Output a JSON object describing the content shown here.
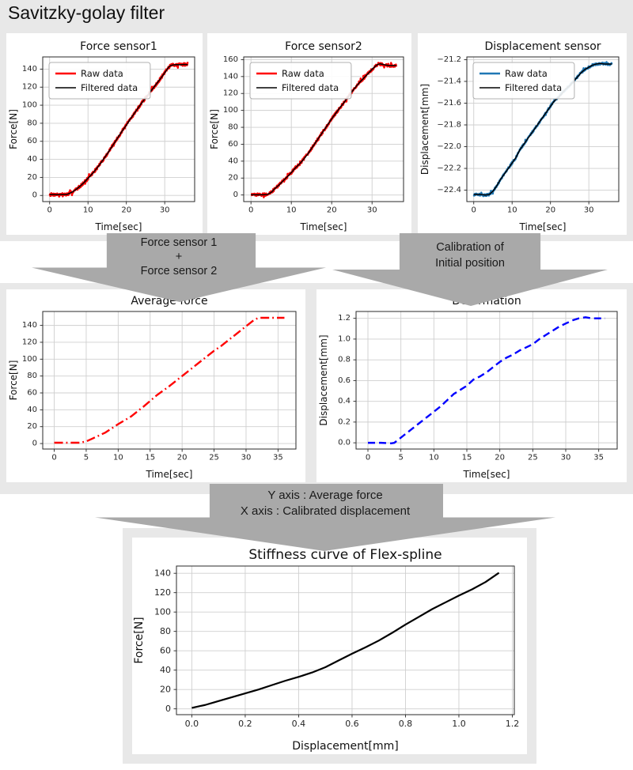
{
  "page": {
    "title": "Savitzky-golay filter",
    "band_color": "#e8e8e8",
    "arrow_color": "#a9a9a9",
    "panel_color": "#ffffff"
  },
  "arrows": [
    {
      "lines": [
        "Force sensor 1",
        "+",
        "Force sensor 2"
      ]
    },
    {
      "lines": [
        "Calibration of",
        "Initial position"
      ]
    },
    {
      "lines": [
        "Y axis : Average force",
        "X axis : Calibrated displacement"
      ]
    }
  ],
  "chart_data": [
    {
      "type": "line",
      "title": "Force sensor1",
      "xlabel": "Time[sec]",
      "ylabel": "Force[N]",
      "xlim": [
        -1.8,
        37.8
      ],
      "ylim": [
        -6.8,
        153.5
      ],
      "xticks": [
        0,
        10,
        20,
        30
      ],
      "yticks": [
        0,
        20,
        40,
        60,
        80,
        100,
        120,
        140
      ],
      "x_decimals": 0,
      "y_decimals": 0,
      "grid": true,
      "legend_position": "upper left",
      "legend": [
        {
          "label": "Raw data",
          "color": "#ff0000"
        },
        {
          "label": "Filtered data",
          "color": "#000000"
        }
      ],
      "points": [
        [
          0,
          1
        ],
        [
          1,
          1
        ],
        [
          2,
          1
        ],
        [
          3,
          1
        ],
        [
          4,
          1
        ],
        [
          4.5,
          1.2
        ],
        [
          5,
          2
        ],
        [
          6,
          4
        ],
        [
          7,
          7
        ],
        [
          8,
          10.5
        ],
        [
          9,
          14.5
        ],
        [
          10,
          19
        ],
        [
          11,
          23.5
        ],
        [
          12,
          28.5
        ],
        [
          13,
          34
        ],
        [
          14,
          40
        ],
        [
          15,
          46
        ],
        [
          16,
          52.5
        ],
        [
          17,
          59
        ],
        [
          18,
          65.5
        ],
        [
          19,
          72
        ],
        [
          20,
          78
        ],
        [
          21,
          84.5
        ],
        [
          22,
          90.5
        ],
        [
          23,
          96.5
        ],
        [
          24,
          102.5
        ],
        [
          25,
          108
        ],
        [
          26,
          113.5
        ],
        [
          27,
          119
        ],
        [
          28,
          124.5
        ],
        [
          29,
          130
        ],
        [
          30,
          136
        ],
        [
          30.5,
          139
        ],
        [
          31,
          142
        ],
        [
          31.5,
          143.8
        ],
        [
          32,
          144.5
        ],
        [
          33,
          145
        ],
        [
          34,
          144.8
        ],
        [
          35,
          145.2
        ],
        [
          36,
          145
        ]
      ],
      "series": [
        {
          "name": "Raw data",
          "color": "#ff0000",
          "width": 2.4,
          "style": "solid",
          "noise": 1.7
        },
        {
          "name": "Filtered data",
          "color": "#000000",
          "width": 1.5,
          "style": "solid"
        }
      ]
    },
    {
      "type": "line",
      "title": "Force sensor2",
      "xlabel": "Time[sec]",
      "ylabel": "Force[N]",
      "xlim": [
        -1.8,
        37.8
      ],
      "ylim": [
        -7.8,
        163.2
      ],
      "xticks": [
        0,
        10,
        20,
        30
      ],
      "yticks": [
        0,
        20,
        40,
        60,
        80,
        100,
        120,
        140,
        160
      ],
      "x_decimals": 0,
      "y_decimals": 0,
      "grid": true,
      "legend_position": "upper left",
      "legend": [
        {
          "label": "Raw data",
          "color": "#ff0000"
        },
        {
          "label": "Filtered data",
          "color": "#000000"
        }
      ],
      "points": [
        [
          0,
          0.3
        ],
        [
          1,
          0.3
        ],
        [
          2,
          0.3
        ],
        [
          3,
          0.3
        ],
        [
          4,
          0.5
        ],
        [
          5,
          3
        ],
        [
          6,
          8
        ],
        [
          7,
          12
        ],
        [
          8,
          17
        ],
        [
          9,
          21.5
        ],
        [
          10,
          26.5
        ],
        [
          11,
          32
        ],
        [
          12,
          36.5
        ],
        [
          13,
          42
        ],
        [
          14,
          48
        ],
        [
          15,
          55
        ],
        [
          16,
          62
        ],
        [
          17,
          69
        ],
        [
          18,
          76
        ],
        [
          19,
          83
        ],
        [
          20,
          90
        ],
        [
          21,
          96.5
        ],
        [
          22,
          103
        ],
        [
          23,
          109
        ],
        [
          24,
          115.5
        ],
        [
          25,
          122
        ],
        [
          26,
          128
        ],
        [
          27,
          133.5
        ],
        [
          28,
          138.5
        ],
        [
          29,
          143.5
        ],
        [
          30,
          148.5
        ],
        [
          31,
          153
        ],
        [
          31.5,
          154.5
        ],
        [
          32,
          155
        ],
        [
          33,
          154
        ],
        [
          34,
          153.2
        ],
        [
          35,
          153
        ],
        [
          36,
          153
        ]
      ],
      "series": [
        {
          "name": "Raw data",
          "color": "#ff0000",
          "width": 2.4,
          "style": "solid",
          "noise": 1.7
        },
        {
          "name": "Filtered data",
          "color": "#000000",
          "width": 1.5,
          "style": "solid"
        }
      ]
    },
    {
      "type": "line",
      "title": "Displacement sensor",
      "xlabel": "Time[sec]",
      "ylabel": "Displacement[mm]",
      "xlim": [
        -1.8,
        37.8
      ],
      "ylim": [
        -22.505,
        -21.175
      ],
      "xticks": [
        0,
        10,
        20,
        30
      ],
      "yticks": [
        -22.4,
        -22.2,
        -22.0,
        -21.8,
        -21.6,
        -21.4,
        -21.2
      ],
      "x_decimals": 0,
      "y_decimals": 1,
      "grid": true,
      "legend_position": "upper left",
      "legend": [
        {
          "label": "Raw data",
          "color": "#1f77b4"
        },
        {
          "label": "Filtered data",
          "color": "#000000"
        }
      ],
      "points": [
        [
          0,
          -22.44
        ],
        [
          1,
          -22.44
        ],
        [
          2,
          -22.44
        ],
        [
          3,
          -22.445
        ],
        [
          4,
          -22.44
        ],
        [
          5,
          -22.41
        ],
        [
          6,
          -22.36
        ],
        [
          7,
          -22.3
        ],
        [
          8,
          -22.25
        ],
        [
          9,
          -22.2
        ],
        [
          10,
          -22.15
        ],
        [
          11,
          -22.1
        ],
        [
          12,
          -22.03
        ],
        [
          13,
          -21.98
        ],
        [
          14,
          -21.93
        ],
        [
          15,
          -21.88
        ],
        [
          16,
          -21.83
        ],
        [
          17,
          -21.78
        ],
        [
          18,
          -21.73
        ],
        [
          19,
          -21.68
        ],
        [
          20,
          -21.63
        ],
        [
          21,
          -21.58
        ],
        [
          22,
          -21.55
        ],
        [
          23,
          -21.51
        ],
        [
          24,
          -21.47
        ],
        [
          25,
          -21.44
        ],
        [
          26,
          -21.4
        ],
        [
          27,
          -21.36
        ],
        [
          28,
          -21.32
        ],
        [
          29,
          -21.29
        ],
        [
          30,
          -21.27
        ],
        [
          31,
          -21.25
        ],
        [
          32,
          -21.24
        ],
        [
          33,
          -21.235
        ],
        [
          34,
          -21.24
        ],
        [
          35,
          -21.24
        ],
        [
          36,
          -21.24
        ]
      ],
      "series": [
        {
          "name": "Raw data",
          "color": "#1f77b4",
          "width": 2.4,
          "style": "solid",
          "noise": 0.011
        },
        {
          "name": "Filtered data",
          "color": "#000000",
          "width": 1.5,
          "style": "solid"
        }
      ]
    },
    {
      "type": "line",
      "title": "Average force",
      "xlabel": "Time[sec]",
      "ylabel": "Force[N]",
      "xlim": [
        -1.8,
        37.8
      ],
      "ylim": [
        -6.5,
        156.5
      ],
      "xticks": [
        0,
        5,
        10,
        15,
        20,
        25,
        30,
        35
      ],
      "yticks": [
        0,
        20,
        40,
        60,
        80,
        100,
        120,
        140
      ],
      "x_decimals": 0,
      "y_decimals": 0,
      "grid": true,
      "legend_position": "none",
      "legend": [],
      "points": [
        [
          0,
          1
        ],
        [
          2,
          1
        ],
        [
          4,
          1
        ],
        [
          5,
          2.5
        ],
        [
          6,
          6
        ],
        [
          8,
          13
        ],
        [
          10,
          23
        ],
        [
          12,
          32
        ],
        [
          14,
          44
        ],
        [
          16,
          57
        ],
        [
          18,
          68
        ],
        [
          20,
          80
        ],
        [
          22,
          92
        ],
        [
          24,
          104
        ],
        [
          25,
          110
        ],
        [
          26,
          115
        ],
        [
          28,
          127
        ],
        [
          30,
          139
        ],
        [
          31,
          145
        ],
        [
          31.5,
          147.5
        ],
        [
          32,
          149
        ],
        [
          33,
          149
        ],
        [
          34,
          149
        ],
        [
          35,
          149
        ],
        [
          36,
          149
        ]
      ],
      "series": [
        {
          "name": "Average force",
          "color": "#ff0000",
          "width": 2.4,
          "style": "dashdot"
        }
      ]
    },
    {
      "type": "line",
      "title": "Deformation",
      "xlabel": "Time[sec]",
      "ylabel": "Displacement[mm]",
      "xlim": [
        -1.8,
        37.8
      ],
      "ylim": [
        -0.06,
        1.266
      ],
      "xticks": [
        0,
        5,
        10,
        15,
        20,
        25,
        30,
        35
      ],
      "yticks": [
        0.0,
        0.2,
        0.4,
        0.6,
        0.8,
        1.0,
        1.2
      ],
      "x_decimals": 0,
      "y_decimals": 1,
      "grid": true,
      "legend_position": "none",
      "legend": [],
      "points": [
        [
          0,
          0
        ],
        [
          2,
          0
        ],
        [
          3.5,
          -0.005
        ],
        [
          4,
          0
        ],
        [
          5,
          0.05
        ],
        [
          6,
          0.1
        ],
        [
          8,
          0.2
        ],
        [
          10,
          0.3
        ],
        [
          11,
          0.35
        ],
        [
          12,
          0.41
        ],
        [
          13,
          0.47
        ],
        [
          14,
          0.51
        ],
        [
          15,
          0.55
        ],
        [
          16,
          0.61
        ],
        [
          17,
          0.64
        ],
        [
          18,
          0.68
        ],
        [
          19,
          0.73
        ],
        [
          20,
          0.78
        ],
        [
          21,
          0.82
        ],
        [
          22,
          0.85
        ],
        [
          23,
          0.89
        ],
        [
          24,
          0.92
        ],
        [
          25,
          0.95
        ],
        [
          26,
          1.0
        ],
        [
          27,
          1.04
        ],
        [
          28,
          1.08
        ],
        [
          29,
          1.12
        ],
        [
          30,
          1.15
        ],
        [
          31,
          1.18
        ],
        [
          32,
          1.2
        ],
        [
          33,
          1.21
        ],
        [
          34,
          1.2
        ],
        [
          35,
          1.2
        ],
        [
          36,
          1.2
        ]
      ],
      "series": [
        {
          "name": "Deformation",
          "color": "#0000ff",
          "width": 2.4,
          "style": "dashed"
        }
      ]
    },
    {
      "type": "line",
      "title": "Stiffness curve of Flex-spline",
      "xlabel": "Displacement[mm]",
      "ylabel": "Force[N]",
      "xlim": [
        -0.0575,
        1.2075
      ],
      "ylim": [
        -6,
        147.5
      ],
      "xticks": [
        0.0,
        0.2,
        0.4,
        0.6,
        0.8,
        1.0,
        1.2
      ],
      "yticks": [
        0,
        20,
        40,
        60,
        80,
        100,
        120,
        140
      ],
      "x_decimals": 1,
      "y_decimals": 0,
      "grid": true,
      "legend_position": "none",
      "legend": [],
      "points": [
        [
          0,
          1
        ],
        [
          0.05,
          4
        ],
        [
          0.1,
          8
        ],
        [
          0.15,
          12
        ],
        [
          0.2,
          16
        ],
        [
          0.25,
          20
        ],
        [
          0.3,
          24.5
        ],
        [
          0.35,
          29
        ],
        [
          0.4,
          33
        ],
        [
          0.45,
          37.5
        ],
        [
          0.5,
          43
        ],
        [
          0.55,
          50
        ],
        [
          0.6,
          57
        ],
        [
          0.65,
          63.5
        ],
        [
          0.7,
          70.5
        ],
        [
          0.75,
          78.5
        ],
        [
          0.8,
          87
        ],
        [
          0.85,
          95
        ],
        [
          0.9,
          103
        ],
        [
          0.95,
          110
        ],
        [
          1.0,
          117
        ],
        [
          1.05,
          123.5
        ],
        [
          1.1,
          131
        ],
        [
          1.15,
          140.5
        ]
      ],
      "series": [
        {
          "name": "Stiffness",
          "color": "#000000",
          "width": 2.2,
          "style": "solid"
        }
      ]
    }
  ]
}
